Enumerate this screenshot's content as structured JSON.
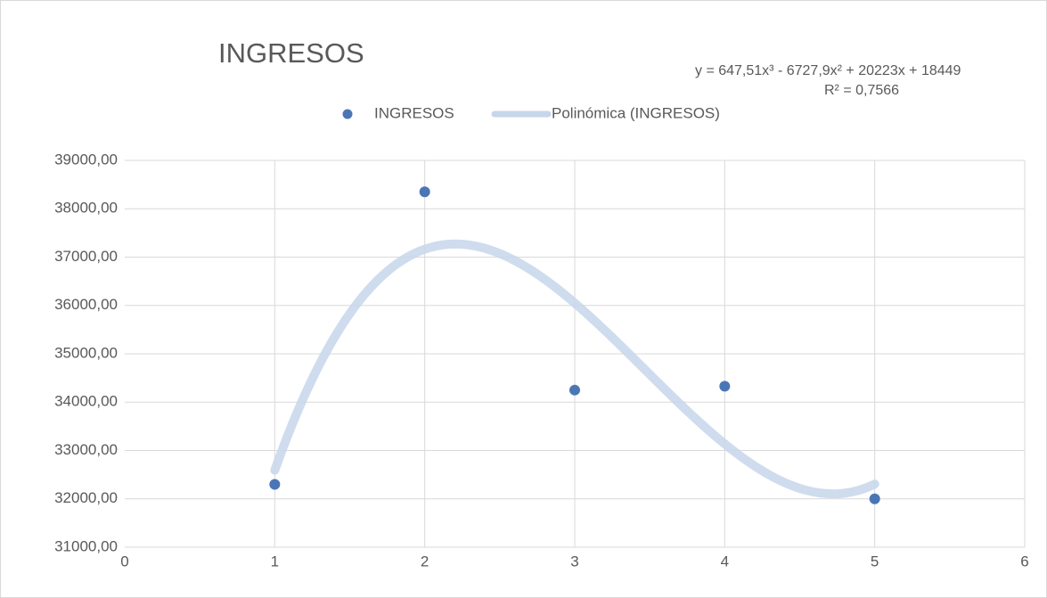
{
  "chart_data": {
    "type": "scatter",
    "title": "INGRESOS",
    "x": [
      1,
      2,
      3,
      4,
      5
    ],
    "series": [
      {
        "name": "INGRESOS",
        "color": "#4a76b6",
        "values": [
          32300,
          38350,
          34250,
          34330,
          32000
        ]
      }
    ],
    "trendline": {
      "name": "Polinómica (INGRESOS)",
      "color": "#c6d6eb",
      "equation": "y = 647,51x³ - 6727,9x² + 20223x + 18449",
      "r_squared": "R² = 0,7566",
      "coefficients": [
        647.51,
        -6727.9,
        20223,
        18449
      ]
    },
    "xlim": [
      0,
      6
    ],
    "xticks": [
      0,
      1,
      2,
      3,
      4,
      5,
      6
    ],
    "ylim": [
      31000,
      39000
    ],
    "yticks": [
      {
        "value": 31000,
        "label": "31000,00"
      },
      {
        "value": 32000,
        "label": "32000,00"
      },
      {
        "value": 33000,
        "label": "33000,00"
      },
      {
        "value": 34000,
        "label": "34000,00"
      },
      {
        "value": 35000,
        "label": "35000,00"
      },
      {
        "value": 36000,
        "label": "36000,00"
      },
      {
        "value": 37000,
        "label": "37000,00"
      },
      {
        "value": 38000,
        "label": "38000,00"
      },
      {
        "value": 39000,
        "label": "39000,00"
      }
    ],
    "grid": true,
    "legend": "top"
  }
}
